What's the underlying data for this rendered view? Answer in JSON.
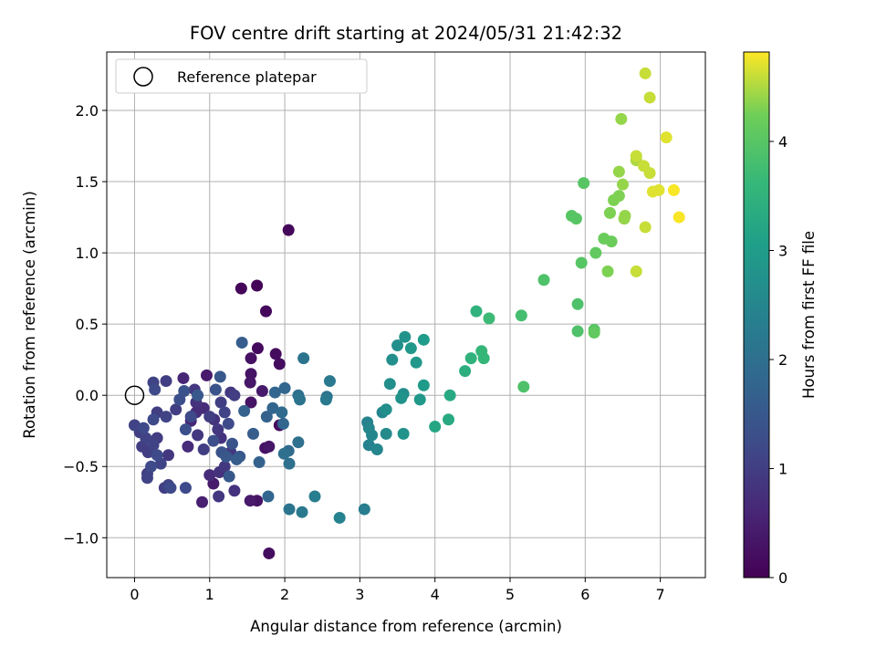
{
  "chart_data": {
    "type": "scatter",
    "title": "FOV centre drift starting at 2024/05/31 21:42:32",
    "xlabel": "Angular distance from reference (arcmin)",
    "ylabel": "Rotation from reference (arcmin)",
    "colorbar_label": "Hours from first FF file",
    "xlim": [
      -0.37,
      7.6
    ],
    "ylim": [
      -1.28,
      2.41
    ],
    "clim": [
      0,
      4.82
    ],
    "colormap": "viridis",
    "xticks": [
      0,
      1,
      2,
      3,
      4,
      5,
      6,
      7
    ],
    "yticks": [
      -1.0,
      -0.5,
      0.0,
      0.5,
      1.0,
      1.5,
      2.0
    ],
    "xtick_labels": [
      "0",
      "1",
      "2",
      "3",
      "4",
      "5",
      "6",
      "7"
    ],
    "ytick_labels": [
      "−1.0",
      "−0.5",
      "0.0",
      "0.5",
      "1.0",
      "1.5",
      "2.0"
    ],
    "cticks": [
      0,
      1,
      2,
      3,
      4
    ],
    "ctick_labels": [
      "0",
      "1",
      "2",
      "3",
      "4"
    ],
    "grid": true,
    "legend": {
      "placement": "upper-left",
      "entries": [
        "Reference platepar"
      ]
    },
    "reference_point": {
      "x": 0,
      "y": 0,
      "label": "Reference platepar"
    },
    "points": [
      {
        "x": 1.63,
        "y": 0.77,
        "t": 0.05
      },
      {
        "x": 1.42,
        "y": 0.75,
        "t": 0.08
      },
      {
        "x": 1.75,
        "y": 0.59,
        "t": 0.12
      },
      {
        "x": 2.05,
        "y": 1.16,
        "t": 0.1
      },
      {
        "x": 1.64,
        "y": 0.33,
        "t": 0.15
      },
      {
        "x": 1.88,
        "y": 0.29,
        "t": 0.18
      },
      {
        "x": 1.93,
        "y": 0.22,
        "t": 0.2
      },
      {
        "x": 1.55,
        "y": 0.26,
        "t": 0.25
      },
      {
        "x": 1.55,
        "y": 0.15,
        "t": 0.3
      },
      {
        "x": 1.54,
        "y": 0.09,
        "t": 0.35
      },
      {
        "x": 1.7,
        "y": 0.03,
        "t": 0.4
      },
      {
        "x": 1.55,
        "y": -0.05,
        "t": 0.3
      },
      {
        "x": 1.93,
        "y": -0.21,
        "t": 0.2
      },
      {
        "x": 1.74,
        "y": -0.37,
        "t": 0.25
      },
      {
        "x": 1.79,
        "y": -0.36,
        "t": 0.35
      },
      {
        "x": 1.79,
        "y": -1.11,
        "t": 0.2
      },
      {
        "x": 1.63,
        "y": -0.74,
        "t": 0.3
      },
      {
        "x": 1.54,
        "y": -0.74,
        "t": 0.4
      },
      {
        "x": 1.05,
        "y": -0.62,
        "t": 0.4
      },
      {
        "x": 0.9,
        "y": -0.75,
        "t": 0.5
      },
      {
        "x": 0.96,
        "y": 0.14,
        "t": 0.4
      },
      {
        "x": 0.65,
        "y": 0.12,
        "t": 0.6
      },
      {
        "x": 0.8,
        "y": 0.04,
        "t": 0.9
      },
      {
        "x": 0.82,
        "y": -0.05,
        "t": 0.8
      },
      {
        "x": 0.82,
        "y": -0.12,
        "t": 0.7
      },
      {
        "x": 0.75,
        "y": -0.18,
        "t": 0.6
      },
      {
        "x": 0.92,
        "y": -0.09,
        "t": 0.7
      },
      {
        "x": 1.0,
        "y": -0.56,
        "t": 0.7
      },
      {
        "x": 0.71,
        "y": -0.36,
        "t": 0.7
      },
      {
        "x": 0.84,
        "y": -0.28,
        "t": 0.9
      },
      {
        "x": 0.92,
        "y": -0.38,
        "t": 1.0
      },
      {
        "x": 1.06,
        "y": -0.17,
        "t": 0.8
      },
      {
        "x": 1.11,
        "y": -0.24,
        "t": 0.9
      },
      {
        "x": 1.15,
        "y": -0.3,
        "t": 0.8
      },
      {
        "x": 1.13,
        "y": -0.54,
        "t": 0.8
      },
      {
        "x": 1.2,
        "y": -0.5,
        "t": 0.9
      },
      {
        "x": 1.28,
        "y": -0.4,
        "t": 0.9
      },
      {
        "x": 1.33,
        "y": -0.67,
        "t": 0.8
      },
      {
        "x": 1.12,
        "y": -0.71,
        "t": 0.9
      },
      {
        "x": 1.0,
        "y": -0.15,
        "t": 1.0
      },
      {
        "x": 1.15,
        "y": -0.05,
        "t": 1.0
      },
      {
        "x": 1.28,
        "y": 0.02,
        "t": 0.9
      },
      {
        "x": 1.33,
        "y": 0.0,
        "t": 1.0
      },
      {
        "x": 1.2,
        "y": -0.12,
        "t": 1.1
      },
      {
        "x": 1.25,
        "y": -0.2,
        "t": 1.2
      },
      {
        "x": 0.0,
        "y": -0.21,
        "t": 1.1
      },
      {
        "x": 0.07,
        "y": -0.26,
        "t": 1.0
      },
      {
        "x": 0.12,
        "y": -0.23,
        "t": 1.2
      },
      {
        "x": 0.15,
        "y": -0.3,
        "t": 1.1
      },
      {
        "x": 0.1,
        "y": -0.36,
        "t": 1.0
      },
      {
        "x": 0.18,
        "y": -0.4,
        "t": 1.0
      },
      {
        "x": 0.25,
        "y": -0.35,
        "t": 1.1
      },
      {
        "x": 0.3,
        "y": -0.42,
        "t": 1.2
      },
      {
        "x": 0.17,
        "y": -0.55,
        "t": 1.0
      },
      {
        "x": 0.17,
        "y": -0.58,
        "t": 1.1
      },
      {
        "x": 0.22,
        "y": -0.5,
        "t": 1.2
      },
      {
        "x": 0.35,
        "y": -0.48,
        "t": 1.1
      },
      {
        "x": 0.3,
        "y": -0.3,
        "t": 1.0
      },
      {
        "x": 0.45,
        "y": -0.42,
        "t": 0.9
      },
      {
        "x": 0.4,
        "y": -0.65,
        "t": 1.0
      },
      {
        "x": 0.45,
        "y": -0.63,
        "t": 1.1
      },
      {
        "x": 0.48,
        "y": -0.65,
        "t": 1.2
      },
      {
        "x": 0.55,
        "y": -0.1,
        "t": 1.0
      },
      {
        "x": 0.42,
        "y": -0.15,
        "t": 1.1
      },
      {
        "x": 0.3,
        "y": -0.12,
        "t": 1.0
      },
      {
        "x": 0.25,
        "y": -0.17,
        "t": 1.2
      },
      {
        "x": 0.25,
        "y": 0.09,
        "t": 1.1
      },
      {
        "x": 0.42,
        "y": 0.1,
        "t": 1.0
      },
      {
        "x": 0.27,
        "y": 0.04,
        "t": 1.2
      },
      {
        "x": 0.68,
        "y": -0.24,
        "t": 1.3
      },
      {
        "x": 0.68,
        "y": -0.65,
        "t": 1.2
      },
      {
        "x": 0.75,
        "y": -0.15,
        "t": 1.2
      },
      {
        "x": 0.6,
        "y": -0.03,
        "t": 1.3
      },
      {
        "x": 0.66,
        "y": 0.03,
        "t": 1.4
      },
      {
        "x": 0.84,
        "y": 0.0,
        "t": 1.5
      },
      {
        "x": 1.05,
        "y": -0.32,
        "t": 1.3
      },
      {
        "x": 1.08,
        "y": 0.04,
        "t": 1.4
      },
      {
        "x": 1.14,
        "y": 0.13,
        "t": 1.5
      },
      {
        "x": 1.16,
        "y": -0.4,
        "t": 1.4
      },
      {
        "x": 1.22,
        "y": -0.43,
        "t": 1.5
      },
      {
        "x": 1.3,
        "y": -0.34,
        "t": 1.4
      },
      {
        "x": 1.26,
        "y": -0.57,
        "t": 1.5
      },
      {
        "x": 1.36,
        "y": -0.45,
        "t": 1.6
      },
      {
        "x": 1.4,
        "y": -0.43,
        "t": 1.5
      },
      {
        "x": 1.43,
        "y": 0.37,
        "t": 1.6
      },
      {
        "x": 1.46,
        "y": -0.11,
        "t": 1.7
      },
      {
        "x": 1.58,
        "y": -0.27,
        "t": 1.6
      },
      {
        "x": 1.66,
        "y": -0.47,
        "t": 1.7
      },
      {
        "x": 1.78,
        "y": -0.71,
        "t": 1.8
      },
      {
        "x": 1.76,
        "y": -0.15,
        "t": 1.7
      },
      {
        "x": 1.84,
        "y": -0.09,
        "t": 1.8
      },
      {
        "x": 1.87,
        "y": 0.02,
        "t": 1.8
      },
      {
        "x": 1.96,
        "y": -0.12,
        "t": 1.9
      },
      {
        "x": 1.98,
        "y": -0.2,
        "t": 1.8
      },
      {
        "x": 2.0,
        "y": 0.05,
        "t": 1.8
      },
      {
        "x": 2.05,
        "y": -0.39,
        "t": 1.9
      },
      {
        "x": 1.99,
        "y": -0.41,
        "t": 2.0
      },
      {
        "x": 2.06,
        "y": -0.48,
        "t": 2.0
      },
      {
        "x": 2.06,
        "y": -0.8,
        "t": 2.1
      },
      {
        "x": 2.18,
        "y": -0.33,
        "t": 2.0
      },
      {
        "x": 2.18,
        "y": 0.0,
        "t": 2.0
      },
      {
        "x": 2.2,
        "y": -0.03,
        "t": 2.1
      },
      {
        "x": 2.23,
        "y": -0.82,
        "t": 2.2
      },
      {
        "x": 2.25,
        "y": 0.26,
        "t": 2.1
      },
      {
        "x": 2.4,
        "y": -0.71,
        "t": 2.3
      },
      {
        "x": 2.55,
        "y": -0.03,
        "t": 2.2
      },
      {
        "x": 2.56,
        "y": -0.01,
        "t": 2.1
      },
      {
        "x": 2.6,
        "y": 0.1,
        "t": 2.2
      },
      {
        "x": 2.73,
        "y": -0.86,
        "t": 2.4
      },
      {
        "x": 3.06,
        "y": -0.8,
        "t": 2.3
      },
      {
        "x": 3.1,
        "y": -0.19,
        "t": 2.4
      },
      {
        "x": 3.12,
        "y": -0.23,
        "t": 2.5
      },
      {
        "x": 3.12,
        "y": -0.35,
        "t": 2.4
      },
      {
        "x": 3.16,
        "y": -0.28,
        "t": 2.5
      },
      {
        "x": 3.23,
        "y": -0.38,
        "t": 2.5
      },
      {
        "x": 3.3,
        "y": -0.12,
        "t": 2.5
      },
      {
        "x": 3.35,
        "y": -0.27,
        "t": 2.6
      },
      {
        "x": 3.35,
        "y": -0.1,
        "t": 2.7
      },
      {
        "x": 3.4,
        "y": 0.08,
        "t": 2.7
      },
      {
        "x": 3.43,
        "y": 0.25,
        "t": 2.7
      },
      {
        "x": 3.5,
        "y": 0.35,
        "t": 2.7
      },
      {
        "x": 3.55,
        "y": -0.02,
        "t": 2.8
      },
      {
        "x": 3.58,
        "y": -0.27,
        "t": 2.8
      },
      {
        "x": 3.58,
        "y": 0.01,
        "t": 2.7
      },
      {
        "x": 3.6,
        "y": 0.41,
        "t": 2.8
      },
      {
        "x": 3.68,
        "y": 0.33,
        "t": 2.9
      },
      {
        "x": 3.75,
        "y": 0.23,
        "t": 2.9
      },
      {
        "x": 3.8,
        "y": -0.03,
        "t": 2.9
      },
      {
        "x": 3.85,
        "y": 0.39,
        "t": 3.0
      },
      {
        "x": 3.85,
        "y": 0.07,
        "t": 3.0
      },
      {
        "x": 4.0,
        "y": -0.22,
        "t": 3.2
      },
      {
        "x": 4.18,
        "y": -0.17,
        "t": 3.3
      },
      {
        "x": 4.2,
        "y": 0.0,
        "t": 3.3
      },
      {
        "x": 4.4,
        "y": 0.17,
        "t": 3.4
      },
      {
        "x": 4.48,
        "y": 0.26,
        "t": 3.5
      },
      {
        "x": 4.55,
        "y": 0.59,
        "t": 3.5
      },
      {
        "x": 4.62,
        "y": 0.31,
        "t": 3.6
      },
      {
        "x": 4.65,
        "y": 0.26,
        "t": 3.6
      },
      {
        "x": 4.72,
        "y": 0.54,
        "t": 3.7
      },
      {
        "x": 5.15,
        "y": 0.56,
        "t": 3.8
      },
      {
        "x": 5.18,
        "y": 0.06,
        "t": 3.9
      },
      {
        "x": 5.45,
        "y": 0.81,
        "t": 3.9
      },
      {
        "x": 5.82,
        "y": 1.26,
        "t": 4.0
      },
      {
        "x": 5.88,
        "y": 1.24,
        "t": 4.0
      },
      {
        "x": 5.9,
        "y": 0.45,
        "t": 3.9
      },
      {
        "x": 5.9,
        "y": 0.64,
        "t": 3.9
      },
      {
        "x": 5.95,
        "y": 0.93,
        "t": 4.0
      },
      {
        "x": 5.98,
        "y": 1.49,
        "t": 4.0
      },
      {
        "x": 6.12,
        "y": 0.46,
        "t": 4.0
      },
      {
        "x": 6.12,
        "y": 0.44,
        "t": 4.1
      },
      {
        "x": 6.14,
        "y": 1.0,
        "t": 4.1
      },
      {
        "x": 6.25,
        "y": 1.1,
        "t": 4.2
      },
      {
        "x": 6.3,
        "y": 0.87,
        "t": 4.3
      },
      {
        "x": 6.33,
        "y": 1.28,
        "t": 4.3
      },
      {
        "x": 6.35,
        "y": 1.08,
        "t": 4.2
      },
      {
        "x": 6.38,
        "y": 1.37,
        "t": 4.3
      },
      {
        "x": 6.45,
        "y": 1.4,
        "t": 4.3
      },
      {
        "x": 6.45,
        "y": 1.57,
        "t": 4.4
      },
      {
        "x": 6.48,
        "y": 1.94,
        "t": 4.4
      },
      {
        "x": 6.5,
        "y": 1.48,
        "t": 4.4
      },
      {
        "x": 6.52,
        "y": 1.24,
        "t": 4.4
      },
      {
        "x": 6.53,
        "y": 1.26,
        "t": 4.4
      },
      {
        "x": 6.68,
        "y": 0.87,
        "t": 4.6
      },
      {
        "x": 6.68,
        "y": 1.65,
        "t": 4.5
      },
      {
        "x": 6.68,
        "y": 1.68,
        "t": 4.6
      },
      {
        "x": 6.78,
        "y": 1.61,
        "t": 4.6
      },
      {
        "x": 6.8,
        "y": 1.18,
        "t": 4.6
      },
      {
        "x": 6.8,
        "y": 2.26,
        "t": 4.6
      },
      {
        "x": 6.86,
        "y": 1.56,
        "t": 4.6
      },
      {
        "x": 6.86,
        "y": 2.09,
        "t": 4.6
      },
      {
        "x": 6.9,
        "y": 1.43,
        "t": 4.7
      },
      {
        "x": 6.98,
        "y": 1.44,
        "t": 4.7
      },
      {
        "x": 7.08,
        "y": 1.81,
        "t": 4.7
      },
      {
        "x": 7.18,
        "y": 1.44,
        "t": 4.8
      },
      {
        "x": 7.25,
        "y": 1.25,
        "t": 4.8
      }
    ]
  }
}
